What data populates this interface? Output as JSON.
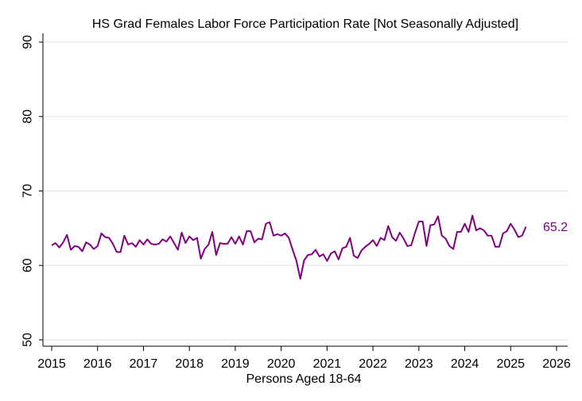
{
  "chart_data": {
    "type": "line",
    "title": "HS Grad Females Labor Force Participation Rate [Not Seasonally Adjusted]",
    "xlabel": "Persons Aged 18-64",
    "ylabel": "",
    "xlim": [
      2015,
      2026
    ],
    "ylim": [
      50,
      90
    ],
    "x_ticks": [
      "2015",
      "2016",
      "2017",
      "2018",
      "2019",
      "2020",
      "2021",
      "2022",
      "2023",
      "2024",
      "2025",
      "2026"
    ],
    "y_ticks": [
      "50",
      "60",
      "70",
      "80",
      "90"
    ],
    "grid": "horizontal",
    "end_label": "65.2",
    "colors": {
      "line": "#800080",
      "grid": "#dde3ea",
      "axis": "#000000"
    },
    "series": [
      {
        "x": [
          2015.0,
          2015.083,
          2015.167,
          2015.25,
          2015.333,
          2015.417,
          2015.5,
          2015.583,
          2015.667,
          2015.75,
          2015.833,
          2015.917,
          2016.0,
          2016.083,
          2016.167,
          2016.25,
          2016.333,
          2016.417,
          2016.5,
          2016.583,
          2016.667,
          2016.75,
          2016.833,
          2016.917,
          2017.0,
          2017.083,
          2017.167,
          2017.25,
          2017.333,
          2017.417,
          2017.5,
          2017.583,
          2017.667,
          2017.75,
          2017.833,
          2017.917,
          2018.0,
          2018.083,
          2018.167,
          2018.25,
          2018.333,
          2018.417,
          2018.5,
          2018.583,
          2018.667,
          2018.75,
          2018.833,
          2018.917,
          2019.0,
          2019.083,
          2019.167,
          2019.25,
          2019.333,
          2019.417,
          2019.5,
          2019.583,
          2019.667,
          2019.75,
          2019.833,
          2019.917,
          2020.0,
          2020.083,
          2020.167,
          2020.25,
          2020.333,
          2020.417,
          2020.5,
          2020.583,
          2020.667,
          2020.75,
          2020.833,
          2020.917,
          2021.0,
          2021.083,
          2021.167,
          2021.25,
          2021.333,
          2021.417,
          2021.5,
          2021.583,
          2021.667,
          2021.75,
          2021.833,
          2021.917,
          2022.0,
          2022.083,
          2022.167,
          2022.25,
          2022.333,
          2022.417,
          2022.5,
          2022.583,
          2022.667,
          2022.75,
          2022.833,
          2022.917,
          2023.0,
          2023.083,
          2023.167,
          2023.25,
          2023.333,
          2023.417,
          2023.5,
          2023.583,
          2023.667,
          2023.75,
          2023.833,
          2023.917,
          2024.0,
          2024.083,
          2024.167,
          2024.25,
          2024.333,
          2024.417,
          2024.5,
          2024.583,
          2024.667,
          2024.75,
          2024.833,
          2024.917,
          2025.0,
          2025.083,
          2025.167,
          2025.25,
          2025.333
        ],
        "values": [
          62.7,
          63.0,
          62.4,
          63.1,
          64.1,
          62.1,
          62.6,
          62.5,
          61.9,
          63.1,
          62.8,
          62.2,
          62.6,
          64.3,
          63.8,
          63.7,
          62.9,
          61.8,
          61.8,
          64.0,
          62.8,
          63.0,
          62.5,
          63.4,
          62.8,
          63.5,
          62.9,
          62.8,
          62.9,
          63.5,
          63.2,
          63.9,
          63.0,
          62.1,
          64.4,
          63.0,
          63.9,
          63.4,
          63.7,
          60.9,
          62.2,
          62.8,
          64.5,
          61.4,
          63.0,
          62.9,
          62.9,
          63.8,
          62.9,
          63.9,
          62.8,
          64.6,
          64.6,
          63.1,
          63.6,
          63.5,
          65.6,
          65.8,
          64.0,
          64.2,
          64.0,
          64.3,
          63.7,
          62.1,
          60.6,
          58.2,
          60.7,
          61.4,
          61.5,
          62.1,
          61.2,
          61.5,
          60.6,
          61.6,
          61.9,
          60.8,
          62.3,
          62.5,
          63.7,
          61.3,
          61.0,
          62.0,
          62.5,
          62.9,
          63.4,
          62.6,
          63.7,
          63.4,
          65.3,
          63.8,
          63.3,
          64.4,
          63.6,
          62.6,
          62.7,
          64.4,
          65.9,
          65.9,
          62.6,
          65.4,
          65.5,
          66.6,
          64.0,
          63.6,
          62.6,
          62.2,
          64.5,
          64.5,
          65.6,
          64.5,
          66.7,
          64.7,
          65.0,
          64.7,
          64.0,
          64.0,
          62.5,
          62.5,
          64.3,
          64.6,
          65.6,
          64.8,
          63.8,
          64.0,
          65.2
        ]
      }
    ]
  }
}
